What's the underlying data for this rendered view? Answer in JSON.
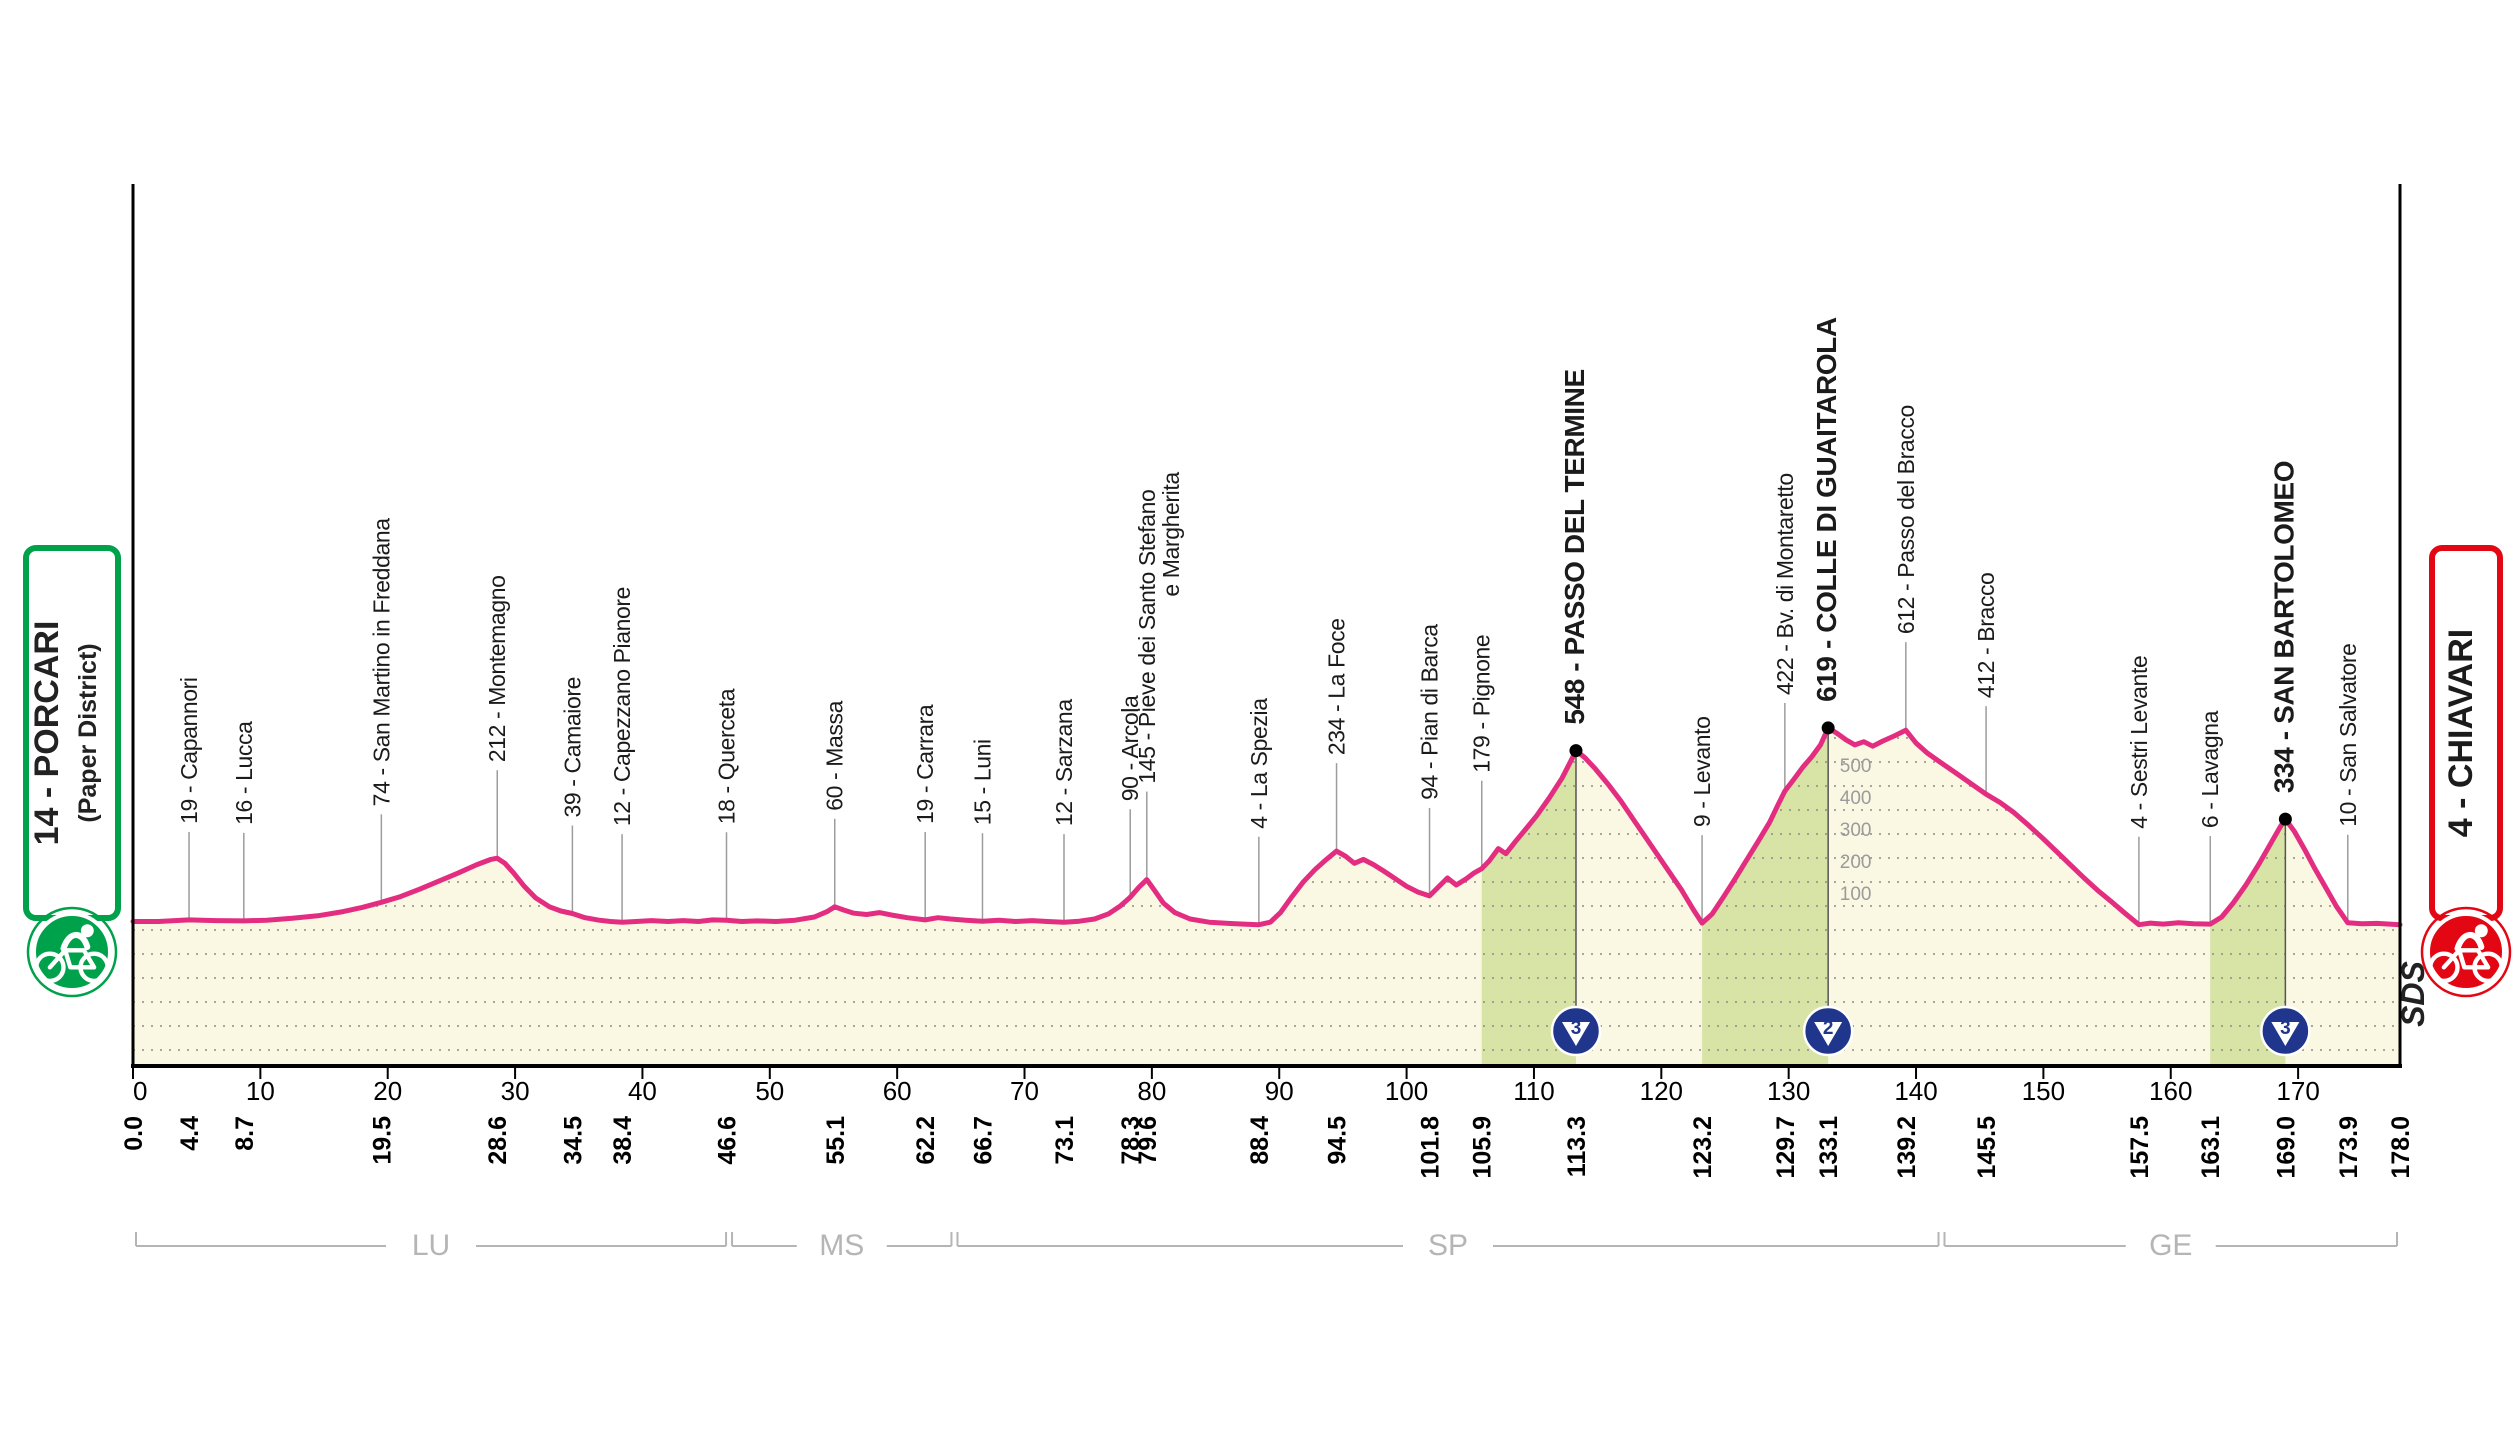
{
  "start_box": {
    "line1": "14 - PORCARI",
    "line2": "(Paper District)"
  },
  "finish_box": {
    "label": "4 - CHIAVARI"
  },
  "signature": "SDS",
  "icons": {
    "start": "start-cyclist-icon",
    "finish": "finish-cyclist-icon"
  },
  "colors": {
    "profile_line": "#E32D80",
    "area_fill": "#FAF8E3",
    "climb_fill": "#D8E3A6",
    "start_green": "#00A14B",
    "finish_red": "#E30613",
    "kom_blue": "#20368C",
    "axis_black": "#000000",
    "label_dark": "#1B1B1B",
    "tick_gray": "#9C9C9C",
    "province_gray": "#B5B5B5",
    "elev_axis_gray": "#9B9B9B"
  },
  "chart_data": {
    "type": "area",
    "total_km": 178.0,
    "ylim": [
      0,
      650
    ],
    "grid": "dotted-horizontal",
    "x_ticks": [
      "0",
      "10",
      "20",
      "30",
      "40",
      "50",
      "60",
      "70",
      "80",
      "90",
      "100",
      "110",
      "120",
      "130",
      "140",
      "150",
      "160",
      "170"
    ],
    "km_marks": [
      "0.0",
      "4.4",
      "8.7",
      "19.5",
      "28.6",
      "34.5",
      "38.4",
      "46.6",
      "55.1",
      "62.2",
      "66.7",
      "73.1",
      "78.3",
      "79.6",
      "88.4",
      "94.5",
      "101.8",
      "105.9",
      "113.3",
      "123.2",
      "129.7",
      "133.1",
      "139.2",
      "145.5",
      "157.5",
      "163.1",
      "169.0",
      "173.9",
      "178.0"
    ],
    "km_marks_pos": [
      0.0,
      4.4,
      8.7,
      19.5,
      28.6,
      34.5,
      38.4,
      46.6,
      55.1,
      62.2,
      66.7,
      73.1,
      78.3,
      79.6,
      88.4,
      94.5,
      101.8,
      105.9,
      113.3,
      123.2,
      129.7,
      133.1,
      139.2,
      145.5,
      157.5,
      163.1,
      169.0,
      173.9,
      178.0
    ],
    "elevation_axis_labels": [
      "500",
      "400",
      "300",
      "200",
      "100"
    ],
    "elevation_axis_values": [
      500,
      400,
      300,
      200,
      100
    ],
    "elevation_axis_km": 133.7,
    "provinces": [
      {
        "label": "LU",
        "from": 0.0,
        "to": 46.8
      },
      {
        "label": "MS",
        "from": 46.8,
        "to": 64.5
      },
      {
        "label": "SP",
        "from": 64.5,
        "to": 142.0
      },
      {
        "label": "GE",
        "from": 142.0,
        "to": 178.0
      }
    ],
    "waypoints": [
      {
        "km": 4.4,
        "elev": 19,
        "name": "19 - Capannori"
      },
      {
        "km": 8.7,
        "elev": 16,
        "name": "16 - Lucca"
      },
      {
        "km": 19.5,
        "elev": 74,
        "name": "74 - San Martino in Freddana"
      },
      {
        "km": 28.6,
        "elev": 212,
        "name": "212 - Montemagno"
      },
      {
        "km": 34.5,
        "elev": 39,
        "name": "39 - Camaiore"
      },
      {
        "km": 38.4,
        "elev": 12,
        "name": "12 - Capezzano Pianore"
      },
      {
        "km": 46.6,
        "elev": 18,
        "name": "18 - Querceta"
      },
      {
        "km": 55.1,
        "elev": 60,
        "name": "60 - Massa"
      },
      {
        "km": 62.2,
        "elev": 19,
        "name": "19 - Carrara"
      },
      {
        "km": 66.7,
        "elev": 15,
        "name": "15 - Luni"
      },
      {
        "km": 73.1,
        "elev": 12,
        "name": "12 - Sarzana"
      },
      {
        "km": 78.3,
        "elev": 90,
        "name": "90 - Arcola"
      },
      {
        "km": 79.6,
        "elev": 145,
        "name": "145 - Pieve dei Santo Stefano",
        "name2": "e Margherita"
      },
      {
        "km": 88.4,
        "elev": 4,
        "name": "4 - La Spezia"
      },
      {
        "km": 94.5,
        "elev": 234,
        "name": "234 - La Foce"
      },
      {
        "km": 101.8,
        "elev": 94,
        "name": "94 - Pian di Barca"
      },
      {
        "km": 105.9,
        "elev": 179,
        "name": "179 - Pignone"
      },
      {
        "km": 113.3,
        "elev": 548,
        "name": "548 - PASSO DEL TERMINE",
        "bold": true
      },
      {
        "km": 123.2,
        "elev": 9,
        "name": "9 - Levanto"
      },
      {
        "km": 129.7,
        "elev": 422,
        "name": "422 - Bv. di Montaretto"
      },
      {
        "km": 133.1,
        "elev": 619,
        "name": "619 - COLLE DI GUAITAROLA",
        "bold": true
      },
      {
        "km": 139.2,
        "elev": 612,
        "name": "612 - Passo del Bracco"
      },
      {
        "km": 145.5,
        "elev": 412,
        "name": "412 - Bracco"
      },
      {
        "km": 157.5,
        "elev": 4,
        "name": "4 - Sestri Levante"
      },
      {
        "km": 163.1,
        "elev": 6,
        "name": "6 - Lavagna"
      },
      {
        "km": 169.0,
        "elev": 334,
        "name": "334 - SAN BARTOLOMEO",
        "bold": true
      },
      {
        "km": 173.9,
        "elev": 10,
        "name": "10 - San Salvatore"
      }
    ],
    "koms": [
      {
        "km": 113.3,
        "elev": 548,
        "category": "3"
      },
      {
        "km": 133.1,
        "elev": 619,
        "category": "2"
      },
      {
        "km": 169.0,
        "elev": 334,
        "category": "3"
      }
    ],
    "climb_segments": [
      [
        105.9,
        113.3
      ],
      [
        123.2,
        133.1
      ],
      [
        163.1,
        169.0
      ]
    ],
    "profile": [
      [
        0,
        14
      ],
      [
        2,
        14
      ],
      [
        4.4,
        19
      ],
      [
        6.5,
        17
      ],
      [
        8.7,
        16
      ],
      [
        10.5,
        18
      ],
      [
        12.5,
        24
      ],
      [
        14.5,
        32
      ],
      [
        16.5,
        45
      ],
      [
        18,
        58
      ],
      [
        19.5,
        74
      ],
      [
        21,
        92
      ],
      [
        22.5,
        115
      ],
      [
        24,
        140
      ],
      [
        25.5,
        165
      ],
      [
        27,
        192
      ],
      [
        28.1,
        208
      ],
      [
        28.6,
        212
      ],
      [
        29.2,
        196
      ],
      [
        29.9,
        165
      ],
      [
        30.7,
        125
      ],
      [
        31.6,
        88
      ],
      [
        32.7,
        60
      ],
      [
        33.6,
        47
      ],
      [
        34.5,
        39
      ],
      [
        35.5,
        26
      ],
      [
        36.6,
        18
      ],
      [
        37.5,
        14
      ],
      [
        38.4,
        12
      ],
      [
        39.5,
        14
      ],
      [
        40.7,
        17
      ],
      [
        42,
        14
      ],
      [
        43.2,
        17
      ],
      [
        44.4,
        14
      ],
      [
        45.5,
        19
      ],
      [
        46.6,
        18
      ],
      [
        47.8,
        14
      ],
      [
        49,
        16
      ],
      [
        50.5,
        14
      ],
      [
        52,
        18
      ],
      [
        53.5,
        28
      ],
      [
        54.5,
        45
      ],
      [
        55.1,
        60
      ],
      [
        55.8,
        50
      ],
      [
        56.6,
        40
      ],
      [
        57.6,
        36
      ],
      [
        58.6,
        42
      ],
      [
        59.6,
        34
      ],
      [
        60.8,
        26
      ],
      [
        62.2,
        19
      ],
      [
        63.2,
        26
      ],
      [
        64.2,
        22
      ],
      [
        65.4,
        18
      ],
      [
        66.7,
        15
      ],
      [
        68,
        18
      ],
      [
        69.3,
        14
      ],
      [
        70.6,
        17
      ],
      [
        71.8,
        14
      ],
      [
        73.1,
        12
      ],
      [
        74.3,
        15
      ],
      [
        75.5,
        22
      ],
      [
        76.6,
        38
      ],
      [
        77.5,
        62
      ],
      [
        78.3,
        90
      ],
      [
        79,
        122
      ],
      [
        79.6,
        145
      ],
      [
        80.2,
        112
      ],
      [
        80.9,
        72
      ],
      [
        81.8,
        42
      ],
      [
        83,
        22
      ],
      [
        84.5,
        12
      ],
      [
        86,
        8
      ],
      [
        87.2,
        6
      ],
      [
        88.4,
        4
      ],
      [
        89.3,
        12
      ],
      [
        90.1,
        42
      ],
      [
        91,
        92
      ],
      [
        91.9,
        138
      ],
      [
        92.8,
        176
      ],
      [
        93.7,
        208
      ],
      [
        94.5,
        234
      ],
      [
        95.2,
        218
      ],
      [
        95.9,
        196
      ],
      [
        96.6,
        208
      ],
      [
        97.4,
        192
      ],
      [
        98.2,
        172
      ],
      [
        99.1,
        148
      ],
      [
        100,
        124
      ],
      [
        100.9,
        106
      ],
      [
        101.8,
        94
      ],
      [
        102.5,
        122
      ],
      [
        103.2,
        150
      ],
      [
        103.9,
        128
      ],
      [
        104.7,
        148
      ],
      [
        105.3,
        166
      ],
      [
        105.9,
        179
      ],
      [
        106.5,
        204
      ],
      [
        107.2,
        242
      ],
      [
        107.8,
        226
      ],
      [
        108.5,
        262
      ],
      [
        109.3,
        300
      ],
      [
        110.2,
        344
      ],
      [
        111.2,
        400
      ],
      [
        112.2,
        462
      ],
      [
        112.8,
        508
      ],
      [
        113.3,
        548
      ],
      [
        114,
        526
      ],
      [
        114.8,
        492
      ],
      [
        115.8,
        444
      ],
      [
        116.8,
        392
      ],
      [
        118,
        322
      ],
      [
        119.2,
        252
      ],
      [
        120.4,
        182
      ],
      [
        121.6,
        112
      ],
      [
        122.5,
        52
      ],
      [
        123.2,
        9
      ],
      [
        124,
        38
      ],
      [
        124.9,
        92
      ],
      [
        125.8,
        148
      ],
      [
        126.7,
        206
      ],
      [
        127.6,
        264
      ],
      [
        128.5,
        324
      ],
      [
        129.2,
        382
      ],
      [
        129.7,
        422
      ],
      [
        130.4,
        458
      ],
      [
        131.1,
        496
      ],
      [
        131.8,
        528
      ],
      [
        132.5,
        566
      ],
      [
        133.1,
        619
      ],
      [
        133.8,
        602
      ],
      [
        134.5,
        582
      ],
      [
        135.2,
        566
      ],
      [
        135.9,
        576
      ],
      [
        136.6,
        562
      ],
      [
        137.4,
        578
      ],
      [
        138.3,
        594
      ],
      [
        139.2,
        612
      ],
      [
        140,
        572
      ],
      [
        140.9,
        540
      ],
      [
        141.9,
        512
      ],
      [
        143,
        482
      ],
      [
        144.2,
        448
      ],
      [
        145.5,
        412
      ],
      [
        146.6,
        386
      ],
      [
        147.7,
        354
      ],
      [
        148.8,
        316
      ],
      [
        149.9,
        276
      ],
      [
        151,
        234
      ],
      [
        152.1,
        192
      ],
      [
        153.2,
        150
      ],
      [
        154.3,
        110
      ],
      [
        155.4,
        74
      ],
      [
        156.4,
        40
      ],
      [
        157.5,
        4
      ],
      [
        158.4,
        9
      ],
      [
        159.4,
        6
      ],
      [
        160.6,
        10
      ],
      [
        161.8,
        7
      ],
      [
        163.1,
        6
      ],
      [
        164,
        28
      ],
      [
        164.9,
        72
      ],
      [
        165.9,
        128
      ],
      [
        166.9,
        192
      ],
      [
        167.9,
        262
      ],
      [
        168.6,
        310
      ],
      [
        169,
        334
      ],
      [
        169.7,
        296
      ],
      [
        170.5,
        240
      ],
      [
        171.3,
        180
      ],
      [
        172.2,
        118
      ],
      [
        173,
        62
      ],
      [
        173.9,
        10
      ],
      [
        175,
        7
      ],
      [
        176.2,
        8
      ],
      [
        177.2,
        6
      ],
      [
        178,
        4
      ]
    ]
  }
}
